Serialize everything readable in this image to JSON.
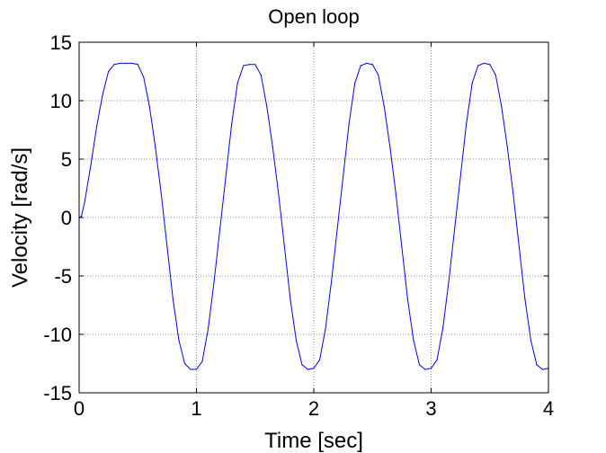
{
  "chart_data": {
    "type": "line",
    "title": "Open loop",
    "xlabel": "Time [sec]",
    "ylabel": "Velocity [rad/s]",
    "xlim": [
      0,
      4
    ],
    "ylim": [
      -15,
      15
    ],
    "xticks": [
      0,
      1,
      2,
      3,
      4
    ],
    "yticks": [
      -15,
      -10,
      -5,
      0,
      5,
      10,
      15
    ],
    "grid": true,
    "series_color": "#0000ff",
    "series": [
      {
        "x": [
          0,
          0.02,
          0.05,
          0.1,
          0.15,
          0.2,
          0.25,
          0.3,
          0.35,
          0.4,
          0.45,
          0.5,
          0.55,
          0.6,
          0.65,
          0.7,
          0.75,
          0.8,
          0.85,
          0.9,
          0.95,
          1.0,
          1.05,
          1.1,
          1.15,
          1.2,
          1.25,
          1.3,
          1.35,
          1.4,
          1.45,
          1.5,
          1.55,
          1.6,
          1.65,
          1.7,
          1.75,
          1.8,
          1.85,
          1.9,
          1.95,
          2.0,
          2.05,
          2.1,
          2.15,
          2.2,
          2.25,
          2.3,
          2.35,
          2.4,
          2.45,
          2.5,
          2.55,
          2.6,
          2.65,
          2.7,
          2.75,
          2.8,
          2.85,
          2.9,
          2.95,
          3.0,
          3.05,
          3.1,
          3.15,
          3.2,
          3.25,
          3.3,
          3.35,
          3.4,
          3.45,
          3.5,
          3.55,
          3.6,
          3.65,
          3.7,
          3.75,
          3.8,
          3.85,
          3.9,
          3.95,
          4.0
        ],
        "y": [
          0,
          0.1,
          1.5,
          4.5,
          7.8,
          10.5,
          12.5,
          13.1,
          13.2,
          13.2,
          13.2,
          13.1,
          12.0,
          9.5,
          6.0,
          2.0,
          -2.5,
          -7.0,
          -10.5,
          -12.5,
          -13.0,
          -13.0,
          -12.3,
          -9.5,
          -5.5,
          -1.0,
          3.5,
          8.0,
          11.5,
          13.0,
          13.1,
          13.1,
          12.2,
          9.5,
          6.0,
          2.0,
          -2.5,
          -7.0,
          -10.5,
          -12.6,
          -13.0,
          -12.9,
          -12.2,
          -9.5,
          -5.5,
          -1.0,
          3.5,
          8.0,
          11.5,
          13.0,
          13.2,
          13.1,
          12.2,
          9.5,
          6.0,
          2.0,
          -2.5,
          -7.0,
          -10.5,
          -12.6,
          -13.0,
          -12.9,
          -12.2,
          -9.5,
          -5.5,
          -1.0,
          3.5,
          8.0,
          11.5,
          13.0,
          13.2,
          13.1,
          12.2,
          9.5,
          6.0,
          2.0,
          -2.5,
          -7.0,
          -10.5,
          -12.6,
          -13.0,
          -12.9
        ]
      }
    ]
  }
}
